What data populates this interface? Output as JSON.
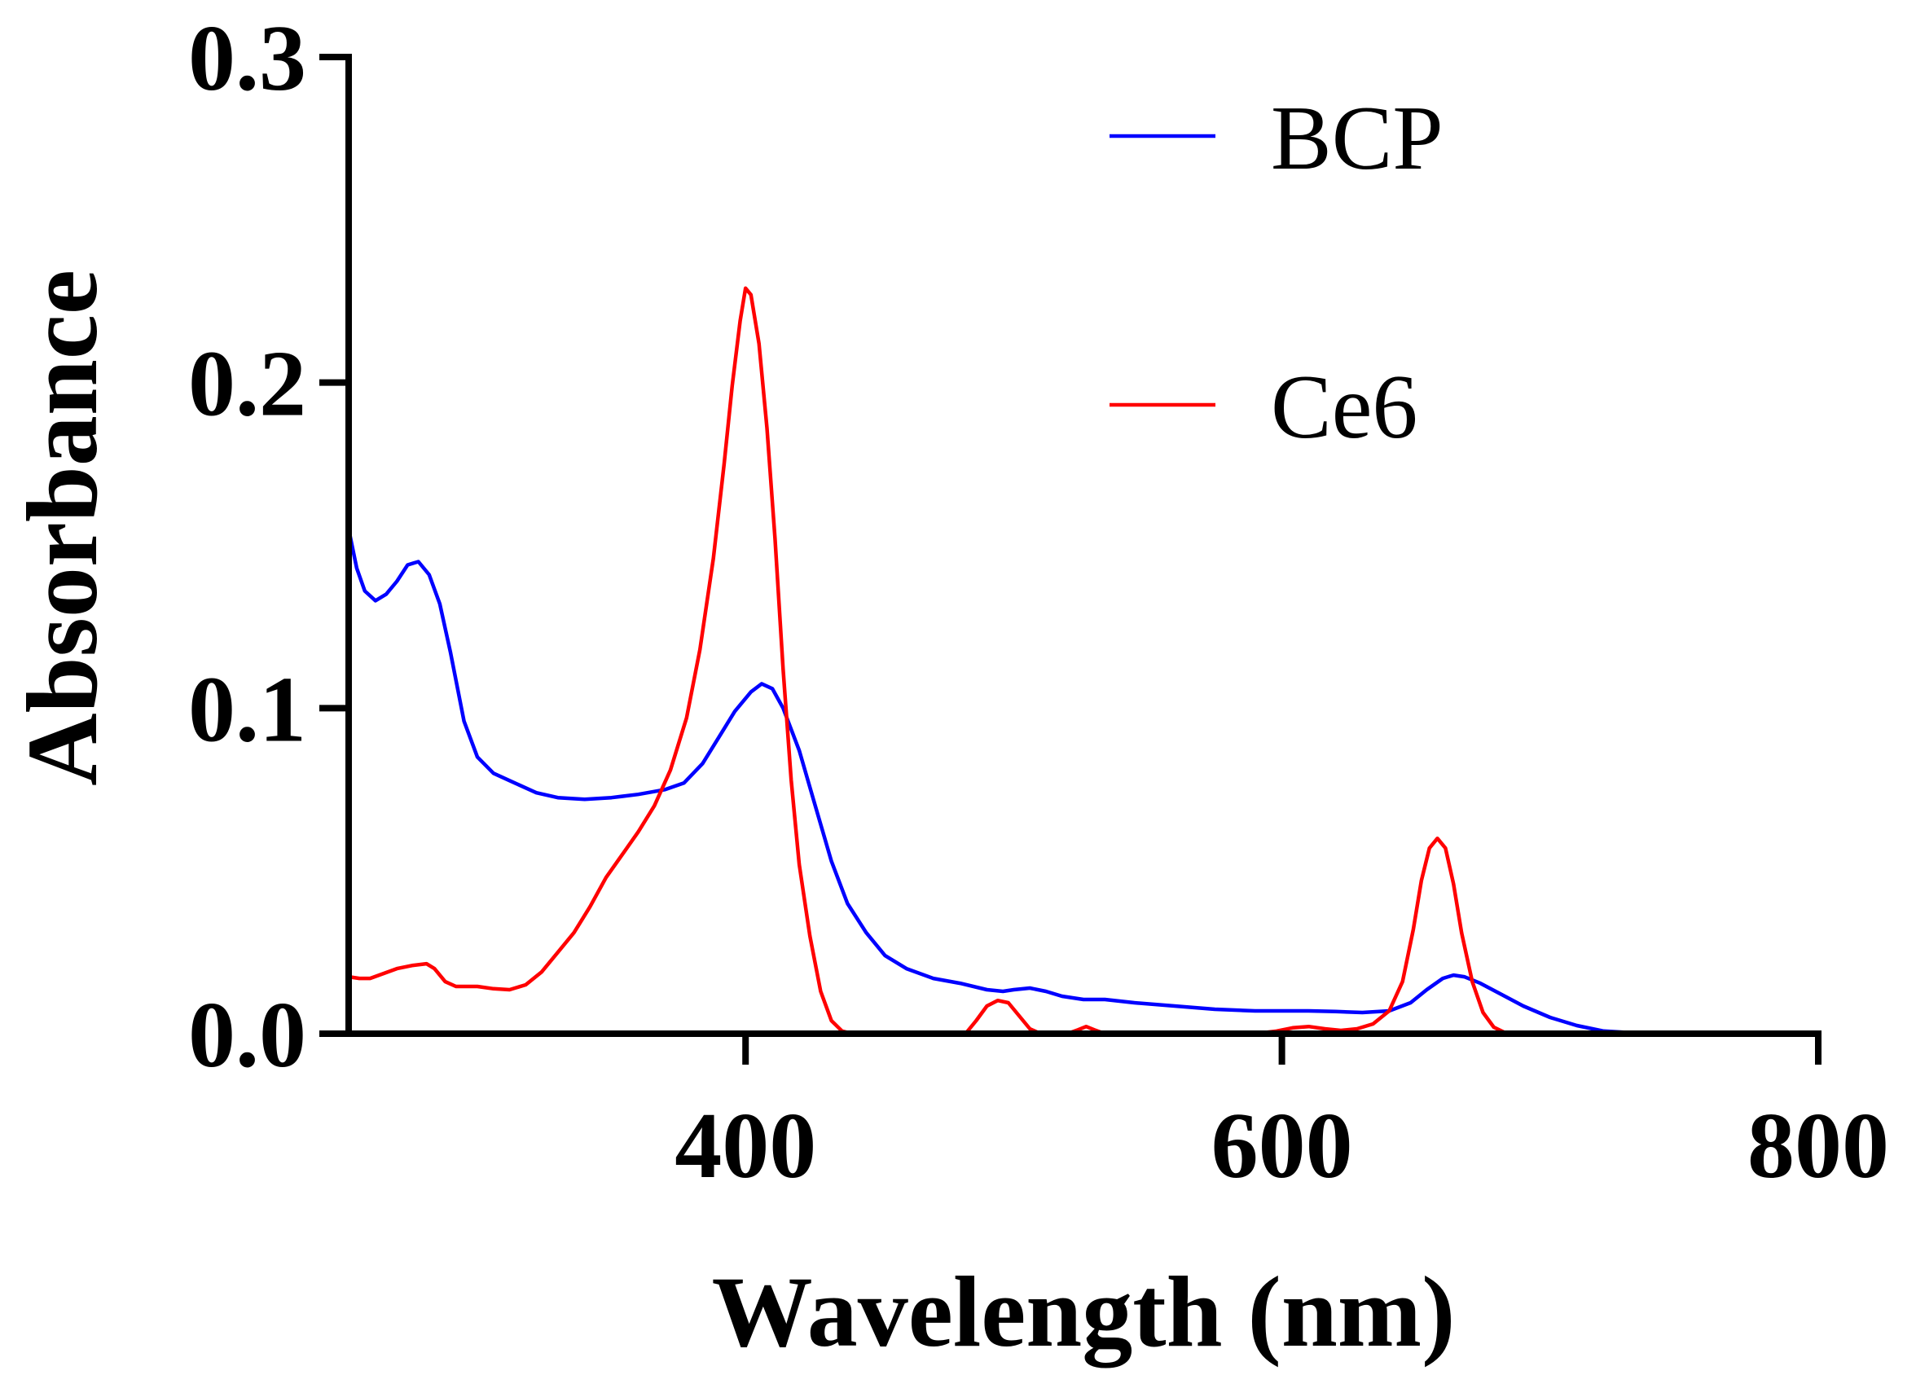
{
  "chart_data": {
    "type": "line",
    "title": "",
    "xlabel": "Wavelength (nm)",
    "ylabel": "Absorbance",
    "xlim": [
      252,
      800
    ],
    "ylim": [
      0,
      0.3
    ],
    "x_ticks": [
      {
        "value": 400,
        "label": "400"
      },
      {
        "value": 600,
        "label": "600"
      },
      {
        "value": 800,
        "label": "800"
      }
    ],
    "y_ticks": [
      {
        "value": 0.0,
        "label": "0.0"
      },
      {
        "value": 0.1,
        "label": "0.1"
      },
      {
        "value": 0.2,
        "label": "0.2"
      },
      {
        "value": 0.3,
        "label": "0.3"
      }
    ],
    "grid": false,
    "legend_position": "top-right",
    "series": [
      {
        "name": "BCP",
        "color": "#0000ff",
        "points": [
          [
            252,
            0.155
          ],
          [
            255,
            0.143
          ],
          [
            258,
            0.136
          ],
          [
            262,
            0.133
          ],
          [
            266,
            0.135
          ],
          [
            270,
            0.139
          ],
          [
            274,
            0.144
          ],
          [
            278,
            0.145
          ],
          [
            282,
            0.141
          ],
          [
            286,
            0.132
          ],
          [
            290,
            0.117
          ],
          [
            295,
            0.096
          ],
          [
            300,
            0.085
          ],
          [
            306,
            0.08
          ],
          [
            314,
            0.077
          ],
          [
            322,
            0.074
          ],
          [
            330,
            0.0725
          ],
          [
            340,
            0.072
          ],
          [
            350,
            0.0725
          ],
          [
            360,
            0.0735
          ],
          [
            370,
            0.075
          ],
          [
            377,
            0.077
          ],
          [
            384,
            0.083
          ],
          [
            390,
            0.091
          ],
          [
            396,
            0.099
          ],
          [
            402,
            0.105
          ],
          [
            406,
            0.1075
          ],
          [
            410,
            0.106
          ],
          [
            414,
            0.1
          ],
          [
            420,
            0.087
          ],
          [
            426,
            0.07
          ],
          [
            432,
            0.053
          ],
          [
            438,
            0.04
          ],
          [
            445,
            0.031
          ],
          [
            452,
            0.024
          ],
          [
            460,
            0.02
          ],
          [
            470,
            0.017
          ],
          [
            480,
            0.0155
          ],
          [
            490,
            0.0135
          ],
          [
            496,
            0.013
          ],
          [
            500,
            0.0135
          ],
          [
            506,
            0.014
          ],
          [
            512,
            0.013
          ],
          [
            518,
            0.0115
          ],
          [
            526,
            0.0105
          ],
          [
            534,
            0.0105
          ],
          [
            545,
            0.0095
          ],
          [
            560,
            0.0085
          ],
          [
            575,
            0.0075
          ],
          [
            590,
            0.007
          ],
          [
            600,
            0.007
          ],
          [
            610,
            0.007
          ],
          [
            620,
            0.0068
          ],
          [
            630,
            0.0065
          ],
          [
            640,
            0.007
          ],
          [
            648,
            0.0095
          ],
          [
            654,
            0.0135
          ],
          [
            660,
            0.017
          ],
          [
            664,
            0.018
          ],
          [
            668,
            0.0175
          ],
          [
            674,
            0.0155
          ],
          [
            682,
            0.012
          ],
          [
            690,
            0.0085
          ],
          [
            700,
            0.005
          ],
          [
            710,
            0.0025
          ],
          [
            720,
            0.0008
          ],
          [
            730,
            0.0003
          ],
          [
            740,
            0.0002
          ],
          [
            760,
            0.0001
          ],
          [
            776,
            0.0001
          ]
        ]
      },
      {
        "name": "Ce6",
        "color": "#ff0000",
        "points": [
          [
            252,
            0.0175
          ],
          [
            256,
            0.017
          ],
          [
            260,
            0.017
          ],
          [
            265,
            0.0185
          ],
          [
            270,
            0.02
          ],
          [
            276,
            0.021
          ],
          [
            281,
            0.0215
          ],
          [
            284,
            0.02
          ],
          [
            288,
            0.016
          ],
          [
            292,
            0.0145
          ],
          [
            300,
            0.0145
          ],
          [
            306,
            0.0138
          ],
          [
            312,
            0.0135
          ],
          [
            318,
            0.015
          ],
          [
            324,
            0.019
          ],
          [
            330,
            0.025
          ],
          [
            336,
            0.031
          ],
          [
            342,
            0.039
          ],
          [
            348,
            0.048
          ],
          [
            354,
            0.055
          ],
          [
            360,
            0.062
          ],
          [
            366,
            0.07
          ],
          [
            372,
            0.081
          ],
          [
            378,
            0.097
          ],
          [
            383,
            0.118
          ],
          [
            388,
            0.146
          ],
          [
            392,
            0.175
          ],
          [
            395,
            0.199
          ],
          [
            398,
            0.219
          ],
          [
            400,
            0.229
          ],
          [
            402,
            0.227
          ],
          [
            405,
            0.212
          ],
          [
            408,
            0.186
          ],
          [
            411,
            0.152
          ],
          [
            414,
            0.112
          ],
          [
            417,
            0.078
          ],
          [
            420,
            0.052
          ],
          [
            424,
            0.03
          ],
          [
            428,
            0.013
          ],
          [
            432,
            0.004
          ],
          [
            436,
            0.0008
          ],
          [
            440,
            0.0
          ],
          [
            470,
            0.0
          ],
          [
            482,
            0.0
          ],
          [
            486,
            0.004
          ],
          [
            490,
            0.0085
          ],
          [
            494,
            0.0102
          ],
          [
            498,
            0.0095
          ],
          [
            502,
            0.0055
          ],
          [
            506,
            0.0015
          ],
          [
            510,
            0.0
          ],
          [
            520,
            0.0
          ],
          [
            524,
            0.0012
          ],
          [
            527,
            0.0022
          ],
          [
            530,
            0.0012
          ],
          [
            534,
            0.0
          ],
          [
            560,
            0.0
          ],
          [
            590,
            0.0
          ],
          [
            598,
            0.0008
          ],
          [
            604,
            0.0018
          ],
          [
            610,
            0.0022
          ],
          [
            616,
            0.0015
          ],
          [
            622,
            0.001
          ],
          [
            628,
            0.0015
          ],
          [
            634,
            0.003
          ],
          [
            640,
            0.007
          ],
          [
            645,
            0.016
          ],
          [
            649,
            0.032
          ],
          [
            652,
            0.047
          ],
          [
            655,
            0.057
          ],
          [
            658,
            0.06
          ],
          [
            661,
            0.057
          ],
          [
            664,
            0.046
          ],
          [
            667,
            0.031
          ],
          [
            671,
            0.016
          ],
          [
            675,
            0.0065
          ],
          [
            679,
            0.002
          ],
          [
            684,
            0.0
          ]
        ]
      }
    ]
  }
}
